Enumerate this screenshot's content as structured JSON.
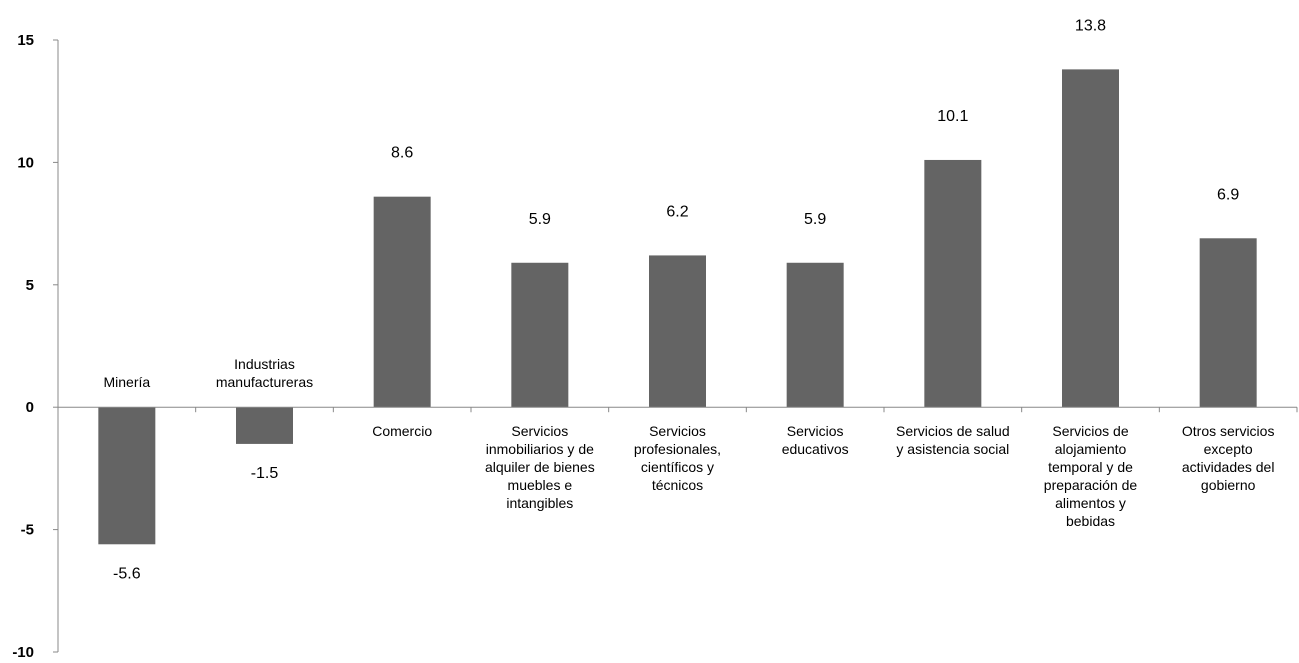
{
  "chart_data": {
    "type": "bar",
    "title": "",
    "xlabel": "",
    "ylabel": "",
    "ylim": [
      -10,
      15
    ],
    "yticks": [
      15,
      10,
      5,
      0,
      -5,
      -10
    ],
    "grid": false,
    "bar_color": "#646464",
    "categories": [
      [
        "Minería"
      ],
      [
        "Industrias",
        "manufactureras"
      ],
      [
        "Comercio"
      ],
      [
        "Servicios",
        "inmobiliarios y de",
        "alquiler de bienes",
        "muebles e",
        "intangibles"
      ],
      [
        "Servicios",
        "profesionales,",
        "científicos y",
        "técnicos"
      ],
      [
        "Servicios",
        "educativos"
      ],
      [
        "Servicios de salud",
        "y asistencia social"
      ],
      [
        "Servicios de",
        "alojamiento",
        "temporal y de",
        "preparación de",
        "alimentos y",
        "bebidas"
      ],
      [
        "Otros servicios",
        "excepto",
        "actividades del",
        "gobierno"
      ]
    ],
    "values": [
      -5.6,
      -1.5,
      8.6,
      5.9,
      6.2,
      5.9,
      10.1,
      13.8,
      6.9
    ]
  }
}
